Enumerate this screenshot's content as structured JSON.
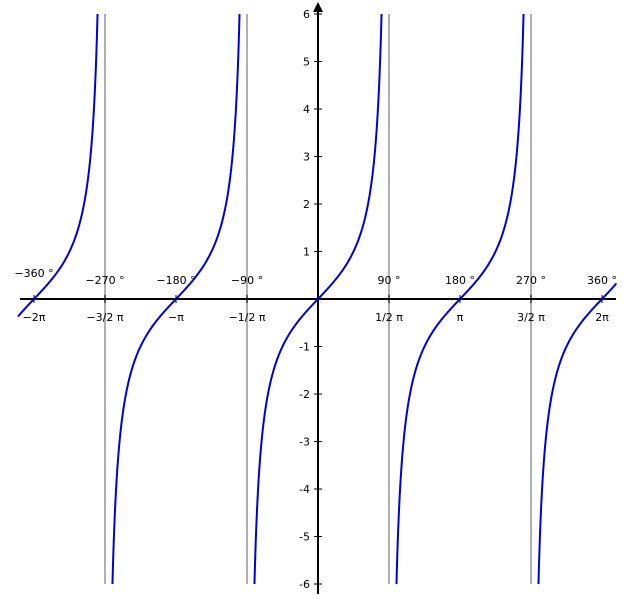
{
  "chart_data": {
    "type": "line",
    "function": "tan(x)",
    "xlim": [
      -6.7,
      6.6
    ],
    "ylim": [
      -6,
      6
    ],
    "grid": false,
    "colors": {
      "curve": "#0000dd",
      "asymptote": "#b0b0b0",
      "axis": "#000000"
    },
    "asymptotes_x": [
      -4.71239,
      -1.5708,
      1.5708,
      4.71239
    ],
    "y_ticks": [
      {
        "value": 6,
        "label": "6"
      },
      {
        "value": 5,
        "label": "5"
      },
      {
        "value": 4,
        "label": "4"
      },
      {
        "value": 3,
        "label": "3"
      },
      {
        "value": 2,
        "label": "2"
      },
      {
        "value": 1,
        "label": "1"
      },
      {
        "value": -1,
        "label": "-1"
      },
      {
        "value": -2,
        "label": "-2"
      },
      {
        "value": -3,
        "label": "-3"
      },
      {
        "value": -4,
        "label": "-4"
      },
      {
        "value": -5,
        "label": "-5"
      },
      {
        "value": -6,
        "label": "-6"
      }
    ],
    "x_ticks": [
      {
        "value": -6.28319,
        "rad": "−2π",
        "deg": "−360 °"
      },
      {
        "value": -4.71239,
        "rad": "−3/2 π",
        "deg": "−270 °"
      },
      {
        "value": -3.14159,
        "rad": "−π",
        "deg": "−180 °"
      },
      {
        "value": -1.5708,
        "rad": "−1/2 π",
        "deg": "−90 °"
      },
      {
        "value": 1.5708,
        "rad": "1/2 π",
        "deg": "90 °"
      },
      {
        "value": 3.14159,
        "rad": "π",
        "deg": "180 °"
      },
      {
        "value": 4.71239,
        "rad": "3/2 π",
        "deg": "270 °"
      },
      {
        "value": 6.28319,
        "rad": "2π",
        "deg": "360 °"
      }
    ]
  }
}
